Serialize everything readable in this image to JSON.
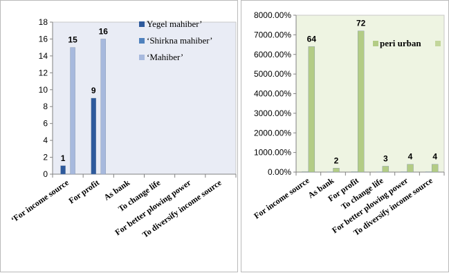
{
  "chart_data": [
    {
      "type": "bar",
      "title": "",
      "xlabel": "",
      "ylabel": "",
      "ylim": [
        0,
        18
      ],
      "yticks": [
        "0",
        "2",
        "4",
        "6",
        "8",
        "10",
        "12",
        "14",
        "16",
        "18"
      ],
      "categories": [
        "‘For income source",
        "For profit",
        "As bank",
        "To change life",
        "For better plowing power",
        "To diversify income source"
      ],
      "series": [
        {
          "name": "Yegel mahiber’",
          "color": "#2e5a9c",
          "values": [
            1,
            9,
            0,
            0,
            0,
            0
          ],
          "labels": [
            "1",
            "9",
            "",
            "",
            "",
            ""
          ]
        },
        {
          "name": "‘Shirkna mahiber’",
          "color": "#4f81bd",
          "values": [
            0,
            0,
            0,
            0,
            0,
            0
          ],
          "labels": [
            "",
            "",
            "",
            "",
            "",
            ""
          ]
        },
        {
          "name": "‘Mahiber’",
          "color": "#a7b9dd",
          "values": [
            15,
            16,
            0,
            0,
            0,
            0
          ],
          "labels": [
            "15",
            "16",
            "",
            "",
            "",
            ""
          ]
        }
      ],
      "plot_background": "#e9ecf5",
      "legend": "top-right inside plot"
    },
    {
      "type": "bar",
      "title": "",
      "xlabel": "",
      "ylabel": "",
      "ylim": [
        0,
        8000
      ],
      "yticks": [
        "0.00%",
        "1000.00%",
        "2000.00%",
        "3000.00%",
        "4000.00%",
        "5000.00%",
        "6000.00%",
        "7000.00%",
        "8000.00%"
      ],
      "categories": [
        "For income source",
        "As bank",
        "For profit",
        "To change life",
        "For better plowing power",
        "To diversify income source"
      ],
      "series": [
        {
          "name": "",
          "color": "#c3d69b",
          "values": [
            30,
            15,
            25,
            15,
            20,
            20
          ],
          "labels": [
            "",
            "",
            "",
            "",
            "",
            ""
          ]
        },
        {
          "name": "peri urban",
          "color": "#b3cc85",
          "values": [
            6400,
            200,
            7200,
            300,
            400,
            400
          ],
          "labels": [
            "64",
            "2",
            "72",
            "3",
            "4",
            "4"
          ]
        }
      ],
      "plot_background": "#eef4e2",
      "legend": "top-right inside plot"
    }
  ]
}
